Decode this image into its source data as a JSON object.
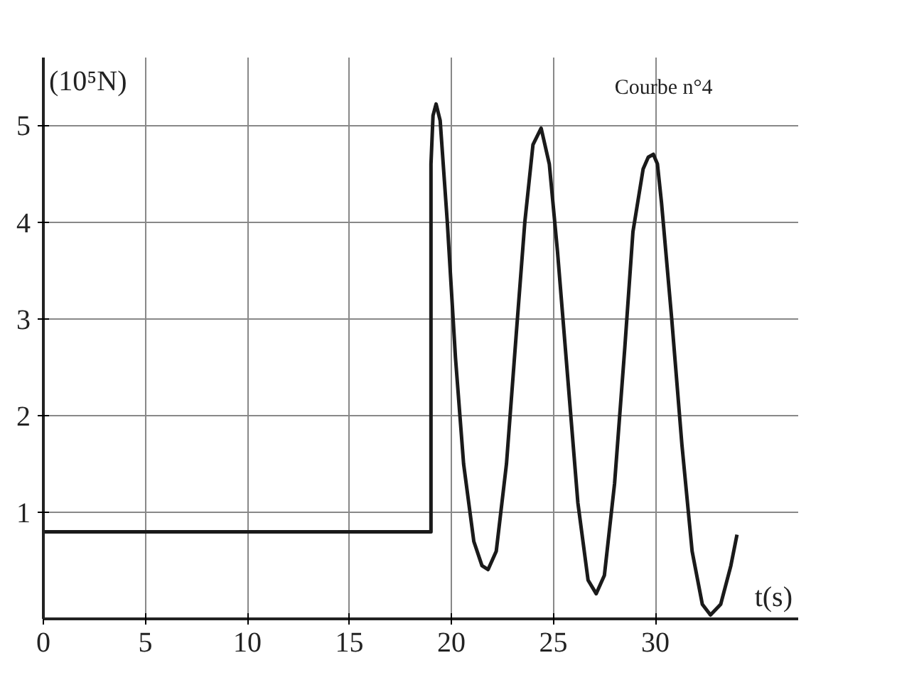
{
  "chart_data": {
    "type": "line",
    "xlabel": "t(s)",
    "ylabel": "(10⁵N)",
    "annotations": [
      "Courbe n°4"
    ],
    "x": [
      0,
      19.0,
      19.0,
      19.1,
      19.25,
      19.45,
      19.8,
      20.2,
      20.6,
      21.1,
      21.5,
      21.8,
      22.2,
      22.7,
      23.2,
      23.6,
      24.0,
      24.4,
      24.8,
      25.2,
      25.7,
      26.2,
      26.7,
      27.1,
      27.5,
      28.0,
      28.5,
      28.9,
      29.4,
      29.65,
      29.9,
      30.1,
      30.3,
      30.8,
      31.3,
      31.8,
      32.3,
      32.7,
      33.2,
      33.7,
      34.0
    ],
    "series": [
      {
        "color": "#1a1a1a",
        "values": [
          0.8,
          0.8,
          4.6,
          5.1,
          5.22,
          5.05,
          4.0,
          2.6,
          1.5,
          0.7,
          0.45,
          0.41,
          0.6,
          1.5,
          2.9,
          4.0,
          4.8,
          4.97,
          4.6,
          3.7,
          2.4,
          1.1,
          0.3,
          0.16,
          0.35,
          1.3,
          2.7,
          3.9,
          4.55,
          4.67,
          4.7,
          4.6,
          4.2,
          3.0,
          1.7,
          0.6,
          0.05,
          -0.06,
          0.05,
          0.45,
          0.77
        ]
      }
    ],
    "xlim": [
      0,
      37
    ],
    "ylim": [
      -0.1,
      5.7
    ],
    "xticks": [
      0,
      5,
      10,
      15,
      20,
      25,
      30
    ],
    "yticks": [
      1,
      2,
      3,
      4,
      5
    ],
    "grid": true,
    "marker": "none",
    "line_style": "solid"
  }
}
